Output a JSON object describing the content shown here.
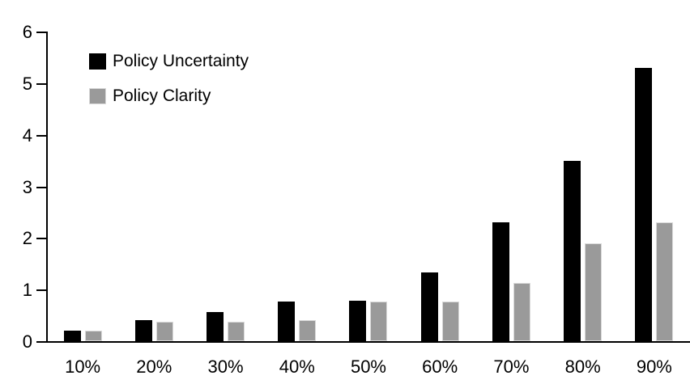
{
  "chart_data": {
    "type": "bar",
    "title": "",
    "xlabel": "",
    "ylabel": "",
    "categories": [
      "10%",
      "20%",
      "30%",
      "40%",
      "50%",
      "60%",
      "70%",
      "80%",
      "90%"
    ],
    "series": [
      {
        "name": "Policy Uncertainty",
        "color": "#000000",
        "values": [
          0.2,
          0.4,
          0.57,
          0.77,
          0.78,
          1.33,
          2.3,
          3.5,
          5.3
        ]
      },
      {
        "name": "Policy Clarity",
        "color": "#9a9a9a",
        "values": [
          0.2,
          0.38,
          0.38,
          0.4,
          0.77,
          0.77,
          1.13,
          1.9,
          2.3
        ]
      }
    ],
    "ylim": [
      0,
      6
    ],
    "yticks": [
      0,
      1,
      2,
      3,
      4,
      5,
      6
    ],
    "grid": false,
    "legend_position": "top-left",
    "background_color": "#ffffff",
    "axis_color": "#000000"
  }
}
